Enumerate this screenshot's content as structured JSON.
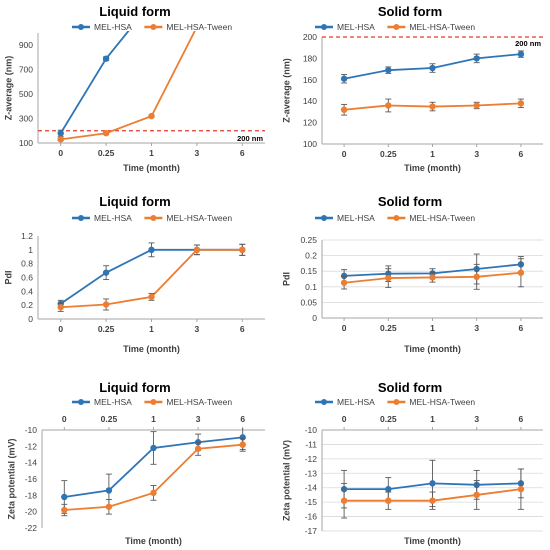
{
  "colors": {
    "blue": "#2e75b6",
    "orange": "#ed7d31",
    "threshold": "#e03c31",
    "grid": "#d9d9d9",
    "axis": "#a6a6a6",
    "text": "#404040"
  },
  "chart_data": [
    {
      "type": "line",
      "title": "Liquid form",
      "xlabel": "Time (month)",
      "ylabel": "Z-average (nm)",
      "categories": [
        "0",
        "0.25",
        "1",
        "3",
        "6"
      ],
      "ylim": [
        100,
        1000
      ],
      "yticks": [
        "100",
        "300",
        "500",
        "700",
        "900"
      ],
      "grid": false,
      "legend": "top",
      "series": [
        {
          "name": "MEL-HSA",
          "color": "#2e75b6",
          "values": [
            180,
            790,
            1250,
            null,
            null
          ],
          "errors": [
            25,
            15,
            0,
            null,
            null
          ]
        },
        {
          "name": "MEL-HSA-Tween",
          "color": "#ed7d31",
          "values": [
            130,
            180,
            320,
            1050,
            null
          ],
          "errors": [
            10,
            10,
            10,
            0,
            null
          ]
        }
      ],
      "reference_line": {
        "value": 200,
        "label": "200 nm"
      }
    },
    {
      "type": "line",
      "title": "Solid form",
      "xlabel": "Time (month)",
      "ylabel": "Z-average (nm)",
      "categories": [
        "0",
        "0.25",
        "1",
        "3",
        "6"
      ],
      "ylim": [
        100,
        200
      ],
      "yticks": [
        "100",
        "120",
        "140",
        "160",
        "180",
        "200"
      ],
      "grid": false,
      "legend": "top",
      "series": [
        {
          "name": "MEL-HSA",
          "color": "#2e75b6",
          "values": [
            161,
            169,
            171,
            180,
            184
          ],
          "errors": [
            4,
            3,
            4,
            4,
            3
          ]
        },
        {
          "name": "MEL-HSA-Tween",
          "color": "#ed7d31",
          "values": [
            132,
            136,
            135,
            136,
            138
          ],
          "errors": [
            5,
            6,
            4,
            3,
            4
          ]
        }
      ],
      "reference_line": {
        "value": 200,
        "label": "200 nm"
      }
    },
    {
      "type": "line",
      "title": "Liquid form",
      "xlabel": "Time (month)",
      "ylabel": "PdI",
      "categories": [
        "0",
        "0.25",
        "1",
        "3",
        "6"
      ],
      "ylim": [
        0,
        1.2
      ],
      "yticks": [
        "0",
        "0.2",
        "0.4",
        "0.6",
        "0.8",
        "1",
        "1.2"
      ],
      "grid": false,
      "legend": "top",
      "series": [
        {
          "name": "MEL-HSA",
          "color": "#2e75b6",
          "values": [
            0.22,
            0.67,
            1.0,
            1.0,
            1.0
          ],
          "errors": [
            0.05,
            0.1,
            0.1,
            0.07,
            0.08
          ]
        },
        {
          "name": "MEL-HSA-Tween",
          "color": "#ed7d31",
          "values": [
            0.17,
            0.21,
            0.32,
            1.0,
            1.0
          ],
          "errors": [
            0.06,
            0.08,
            0.05,
            0.07,
            0.08
          ]
        }
      ]
    },
    {
      "type": "line",
      "title": "Solid form",
      "xlabel": "Time (month)",
      "ylabel": "PdI",
      "categories": [
        "0",
        "0.25",
        "1",
        "3",
        "6"
      ],
      "ylim": [
        0,
        0.25
      ],
      "yticks": [
        "0",
        "0.05",
        "0.1",
        "0.15",
        "0.2",
        "0.25"
      ],
      "grid": true,
      "legend": "top",
      "series": [
        {
          "name": "MEL-HSA",
          "color": "#2e75b6",
          "values": [
            0.135,
            0.142,
            0.143,
            0.157,
            0.172
          ],
          "errors": [
            0.02,
            0.025,
            0.015,
            0.048,
            0.025
          ]
        },
        {
          "name": "MEL-HSA-Tween",
          "color": "#ed7d31",
          "values": [
            0.113,
            0.128,
            0.13,
            0.132,
            0.145
          ],
          "errors": [
            0.02,
            0.03,
            0.015,
            0.04,
            0.045
          ]
        }
      ]
    },
    {
      "type": "line",
      "title": "Liquid form",
      "xlabel": "Time (month)",
      "ylabel": "Zeta potential (mV)",
      "categories": [
        "0",
        "0.25",
        "1",
        "3",
        "6"
      ],
      "ylim": [
        -22,
        -10
      ],
      "yticks": [
        "-10",
        "-12",
        "-14",
        "-16",
        "-18",
        "-20",
        "-22"
      ],
      "x_axis_position": "top",
      "grid": false,
      "legend": "top",
      "series": [
        {
          "name": "MEL-HSA",
          "color": "#2e75b6",
          "values": [
            -18.2,
            -17.4,
            -12.2,
            -11.5,
            -10.9
          ],
          "errors": [
            2.0,
            2.0,
            2.0,
            1.0,
            1.5
          ]
        },
        {
          "name": "MEL-HSA-Tween",
          "color": "#ed7d31",
          "values": [
            -19.8,
            -19.4,
            -17.7,
            -12.3,
            -11.8
          ],
          "errors": [
            0.7,
            0.9,
            0.9,
            0.8,
            0.8
          ]
        }
      ]
    },
    {
      "type": "line",
      "title": "Solid form",
      "xlabel": "Time (month)",
      "ylabel": "Zeta potential (mV)",
      "categories": [
        "0",
        "0.25",
        "1",
        "3",
        "6"
      ],
      "ylim": [
        -17,
        -10
      ],
      "yticks": [
        "-10",
        "-11",
        "-12",
        "-13",
        "-14",
        "-15",
        "-16",
        "-17"
      ],
      "x_axis_position": "top",
      "grid": true,
      "legend": "top",
      "series": [
        {
          "name": "MEL-HSA",
          "color": "#2e75b6",
          "values": [
            -14.1,
            -14.1,
            -13.7,
            -13.8,
            -13.7
          ],
          "errors": [
            1.3,
            0.8,
            1.6,
            1.0,
            1.0
          ]
        },
        {
          "name": "MEL-HSA-Tween",
          "color": "#ed7d31",
          "values": [
            -14.9,
            -14.9,
            -14.9,
            -14.5,
            -14.1
          ],
          "errors": [
            1.2,
            0.6,
            0.6,
            1.0,
            1.4
          ]
        }
      ]
    }
  ]
}
